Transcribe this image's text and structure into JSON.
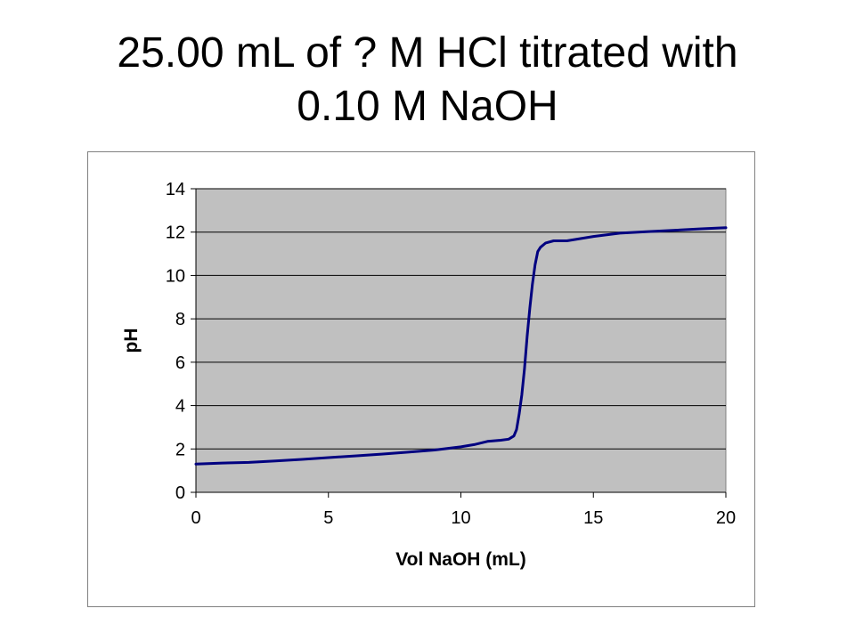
{
  "slide": {
    "title_line1": "25.00 mL of ? M HCl titrated with",
    "title_line2": "0.10 M NaOH"
  },
  "colors": {
    "plot_background": "#c0c0c0",
    "gridline": "#000000",
    "series_line": "#000080",
    "frame": "#808080"
  },
  "chart_data": {
    "type": "line",
    "title": "",
    "xlabel": "Vol NaOH (mL)",
    "ylabel": "pH",
    "xlim": [
      0,
      20
    ],
    "ylim": [
      0,
      14
    ],
    "x_ticks": [
      "0",
      "5",
      "10",
      "15",
      "20"
    ],
    "y_ticks": [
      "0",
      "2",
      "4",
      "6",
      "8",
      "10",
      "12",
      "14"
    ],
    "grid": "horizontal",
    "legend": "none",
    "series": [
      {
        "x": [
          0,
          1,
          2,
          3,
          4,
          5,
          6,
          7,
          8,
          9,
          10,
          10.5,
          11,
          11.5,
          11.8,
          12,
          12.1,
          12.2,
          12.3,
          12.4,
          12.5,
          12.6,
          12.7,
          12.8,
          12.9,
          13,
          13.2,
          13.5,
          14,
          15,
          16,
          17,
          18,
          19,
          20
        ],
        "y": [
          1.3,
          1.35,
          1.38,
          1.45,
          1.52,
          1.6,
          1.68,
          1.76,
          1.85,
          1.95,
          2.1,
          2.2,
          2.35,
          2.4,
          2.45,
          2.6,
          2.9,
          3.6,
          4.5,
          5.7,
          7.2,
          8.5,
          9.6,
          10.5,
          11.1,
          11.3,
          11.5,
          11.6,
          11.6,
          11.8,
          11.95,
          12.02,
          12.08,
          12.15,
          12.2
        ]
      }
    ]
  }
}
